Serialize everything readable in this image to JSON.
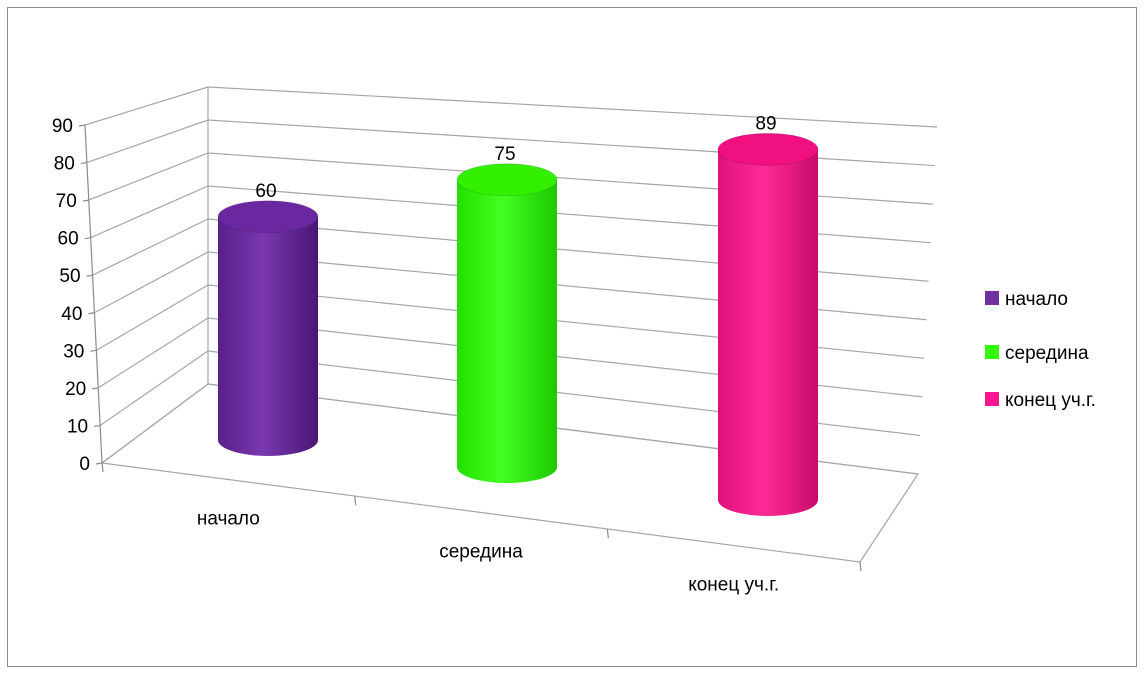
{
  "chart_data": {
    "type": "bar",
    "style": "3d-cylinder",
    "title": "",
    "xlabel": "",
    "ylabel": "",
    "categories": [
      "начало",
      "середина",
      "конец уч.г."
    ],
    "series": [
      {
        "name": "начало",
        "values": [
          60,
          null,
          null
        ],
        "color": "#7030a0"
      },
      {
        "name": "середина",
        "values": [
          null,
          75,
          null
        ],
        "color": "#33ff00"
      },
      {
        "name": "конец уч.г.",
        "values": [
          null,
          null,
          89
        ],
        "color": "#ff1493"
      }
    ],
    "values": [
      60,
      75,
      89
    ],
    "data_labels": [
      "60",
      "75",
      "89"
    ],
    "ylim": [
      0,
      90
    ],
    "yticks": [
      "0",
      "10",
      "20",
      "30",
      "40",
      "50",
      "60",
      "70",
      "80",
      "90"
    ],
    "grid": true,
    "legend_position": "right"
  }
}
